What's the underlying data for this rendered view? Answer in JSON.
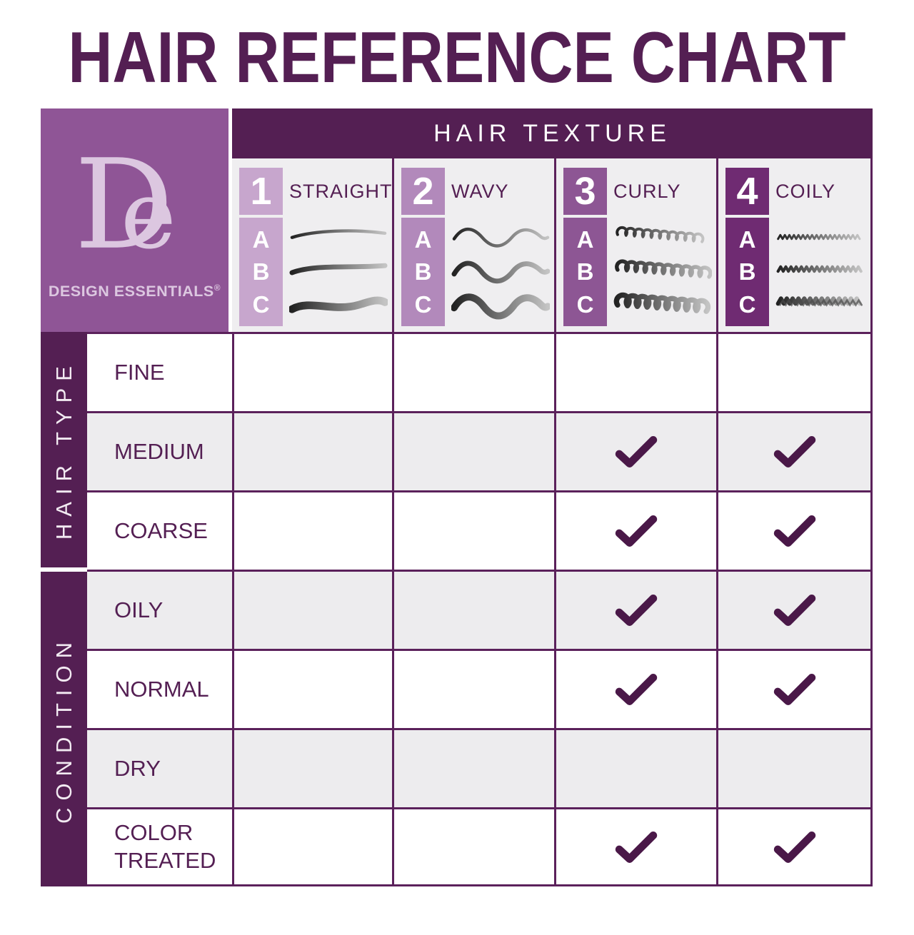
{
  "title": "HAIR REFERENCE CHART",
  "brand": {
    "monogram": "De",
    "name": "DESIGN ESSENTIALS",
    "registered_mark": "®"
  },
  "header": {
    "label": "HAIR TEXTURE"
  },
  "textures": [
    {
      "num": "1",
      "label": "STRAIGHT",
      "letters": [
        "A",
        "B",
        "C"
      ],
      "badge_color": "#c7a6cd",
      "icon": "straight-hair-icon"
    },
    {
      "num": "2",
      "label": "WAVY",
      "letters": [
        "A",
        "B",
        "C"
      ],
      "badge_color": "#b289bb",
      "icon": "wavy-hair-icon"
    },
    {
      "num": "3",
      "label": "CURLY",
      "letters": [
        "A",
        "B",
        "C"
      ],
      "badge_color": "#8d5694",
      "icon": "curly-hair-icon"
    },
    {
      "num": "4",
      "label": "COILY",
      "letters": [
        "A",
        "B",
        "C"
      ],
      "badge_color": "#6f2b72",
      "icon": "coily-hair-icon"
    }
  ],
  "row_groups": [
    {
      "label": "HAIR TYPE",
      "rows": [
        "FINE",
        "MEDIUM",
        "COARSE"
      ]
    },
    {
      "label": "CONDITION",
      "rows": [
        "OILY",
        "NORMAL",
        "DRY",
        "COLOR TREATED"
      ]
    }
  ],
  "grid": {
    "columns": [
      "STRAIGHT",
      "WAVY",
      "CURLY",
      "COILY"
    ],
    "rows": [
      {
        "label": "FINE",
        "checks": [
          false,
          false,
          false,
          false
        ]
      },
      {
        "label": "MEDIUM",
        "checks": [
          false,
          false,
          true,
          true
        ]
      },
      {
        "label": "COARSE",
        "checks": [
          false,
          false,
          true,
          true
        ]
      },
      {
        "label": "OILY",
        "checks": [
          false,
          false,
          true,
          true
        ]
      },
      {
        "label": "NORMAL",
        "checks": [
          false,
          false,
          true,
          true
        ]
      },
      {
        "label": "DRY",
        "checks": [
          false,
          false,
          false,
          false
        ]
      },
      {
        "label": "COLOR TREATED",
        "checks": [
          false,
          false,
          true,
          true
        ]
      }
    ]
  },
  "colors": {
    "accent_dark": "#541f53",
    "grid_line": "#5b215b",
    "checkmark": "#4a1848",
    "logo_bg": "#8f5596",
    "logo_text": "#dcc7e0",
    "texture_cell_bg": "#efeef0",
    "row_gray": "#edecee"
  }
}
